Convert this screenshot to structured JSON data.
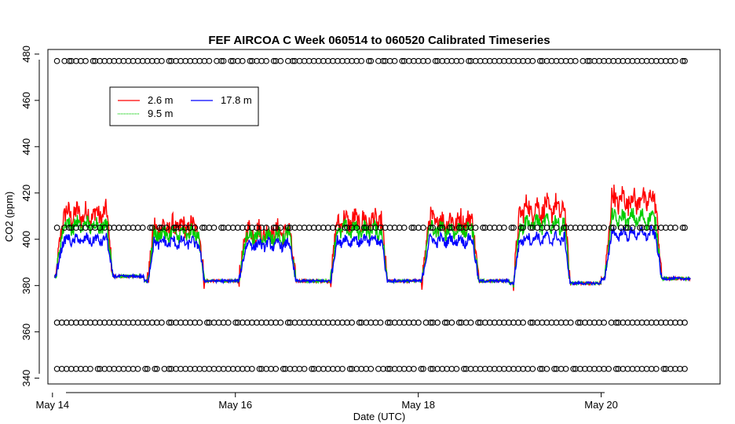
{
  "chart_data": {
    "type": "line",
    "title": "FEF AIRCOA C  Week 060514 to 060520  Calibrated Timeseries",
    "xlabel": "Date (UTC)",
    "ylabel": "CO2 (ppm)",
    "x_tick_labels": [
      "May 14",
      "May 16",
      "May 18",
      "May 20"
    ],
    "y_tick_labels": [
      "340",
      "360",
      "380",
      "400",
      "420",
      "440",
      "460",
      "480"
    ],
    "y_ticks": [
      340,
      360,
      380,
      400,
      420,
      440,
      460,
      480
    ],
    "x_ticks_days": [
      14,
      16,
      18,
      20
    ],
    "xlim_days": [
      13.95,
      21.3
    ],
    "ylim": [
      337.5,
      482
    ],
    "grid": false,
    "legend_position": "top-left",
    "series": [
      {
        "name": "2.6 m",
        "color": "#ff0000",
        "daily_peak": [
          413,
          407,
          405,
          410,
          410,
          416,
          420
        ]
      },
      {
        "name": "9.5 m",
        "color": "#00cc00",
        "daily_peak": [
          408,
          404,
          403,
          406,
          406,
          409,
          411
        ]
      },
      {
        "name": "17.8 m",
        "color": "#0000ff",
        "daily_peak": [
          401,
          400,
          399,
          401,
          401,
          402,
          404
        ]
      }
    ],
    "night_baseline": [
      384,
      382,
      382,
      382,
      382,
      381,
      383
    ],
    "calibration_levels": [
      344,
      364,
      405,
      477
    ],
    "legend_columns": [
      [
        "2.6 m",
        "9.5 m"
      ],
      [
        "17.8 m"
      ]
    ]
  }
}
